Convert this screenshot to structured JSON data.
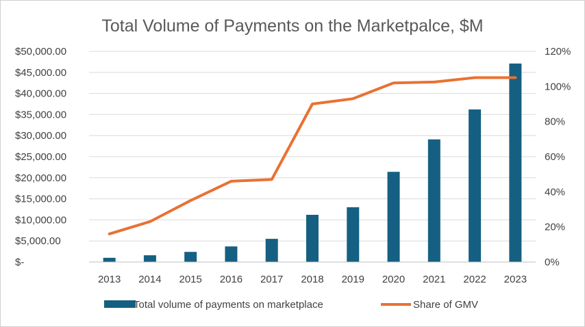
{
  "chart_data": {
    "type": "bar",
    "title": "Total Volume of Payments on the Marketpalce, $M",
    "categories": [
      "2013",
      "2014",
      "2015",
      "2016",
      "2017",
      "2018",
      "2019",
      "2020",
      "2021",
      "2022",
      "2023"
    ],
    "series": [
      {
        "name": "Total volume of payments on marketplace",
        "type": "bar",
        "axis": "left",
        "color": "#156082",
        "values": [
          1000,
          1600,
          2400,
          3700,
          5500,
          11200,
          13000,
          21400,
          29100,
          36200,
          47100
        ]
      },
      {
        "name": "Share of GMV",
        "type": "line",
        "axis": "right",
        "color": "#E97132",
        "values": [
          16,
          23,
          35,
          46,
          47,
          90,
          93,
          102,
          102.5,
          105,
          105
        ]
      }
    ],
    "y_left": {
      "min": 0,
      "max": 50000,
      "tick_labels": [
        "$-",
        "$5,000.00",
        "$10,000.00",
        "$15,000.00",
        "$20,000.00",
        "$25,000.00",
        "$30,000.00",
        "$35,000.00",
        "$40,000.00",
        "$45,000.00",
        "$50,000.00"
      ]
    },
    "y_right": {
      "min": 0,
      "max": 120,
      "tick_labels": [
        "0%",
        "20%",
        "40%",
        "60%",
        "80%",
        "100%",
        "120%"
      ]
    },
    "grid": true,
    "legend": "bottom"
  }
}
